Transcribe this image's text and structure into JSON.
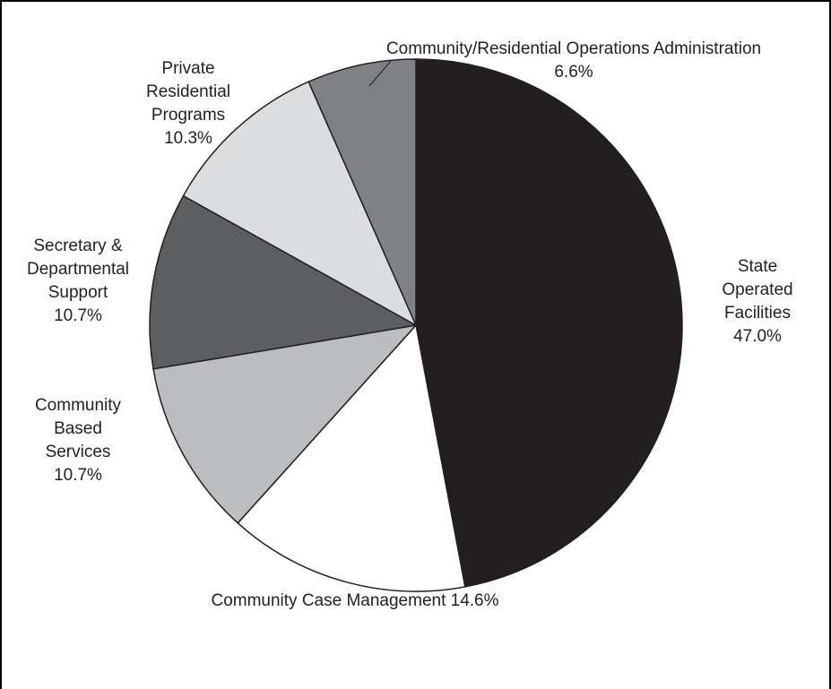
{
  "chart_data": {
    "type": "pie",
    "title": "",
    "slices": [
      {
        "id": "state-operated-facilities",
        "label_lines": [
          "State",
          "Operated",
          "Facilities"
        ],
        "value": 47.0,
        "value_label": "47.0%",
        "color": "#231f20"
      },
      {
        "id": "community-case-management",
        "label_lines": [
          "Community Case Management"
        ],
        "value": 14.6,
        "value_label": "14.6%",
        "color": "#ffffff"
      },
      {
        "id": "community-based-services",
        "label_lines": [
          "Community",
          "Based",
          "Services"
        ],
        "value": 10.7,
        "value_label": "10.7%",
        "color": "#bcbdc0"
      },
      {
        "id": "secretary-departmental-support",
        "label_lines": [
          "Secretary &",
          "Departmental",
          "Support"
        ],
        "value": 10.7,
        "value_label": "10.7%",
        "color": "#5d5e60"
      },
      {
        "id": "private-residential-programs",
        "label_lines": [
          "Private",
          "Residential",
          "Programs"
        ],
        "value": 10.3,
        "value_label": "10.3%",
        "color": "#dcdddf"
      },
      {
        "id": "community-residential-operations-administration",
        "label_lines": [
          "Community/Residential Operations Administration"
        ],
        "value": 6.6,
        "value_label": "6.6%",
        "color": "#808184"
      }
    ],
    "start_angle": "12 o'clock",
    "direction": "clockwise",
    "legend": "none (labels placed around slices)"
  }
}
